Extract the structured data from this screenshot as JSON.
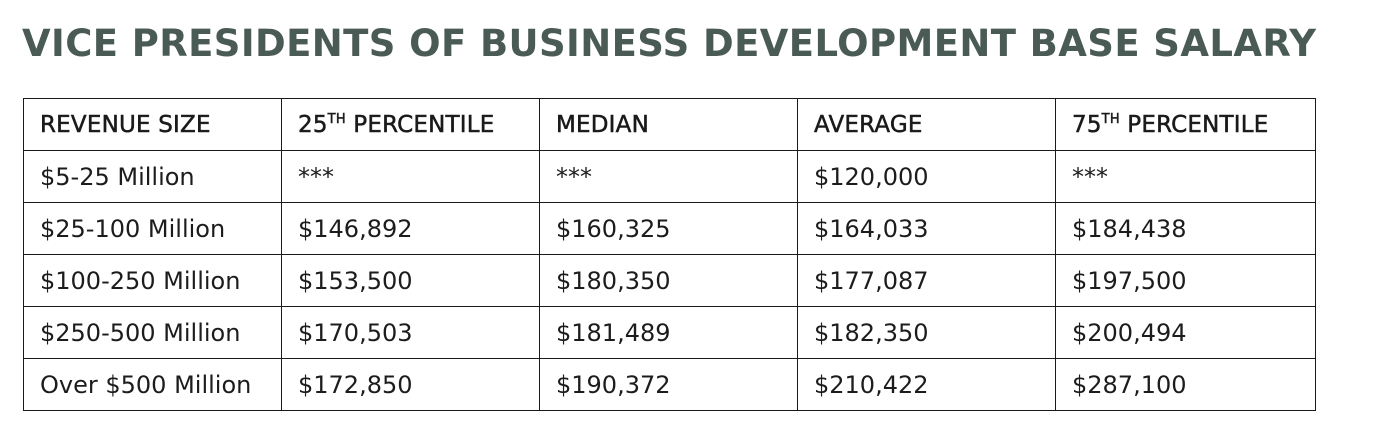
{
  "title": "VICE PRESIDENTS OF BUSINESS DEVELOPMENT BASE SALARY",
  "columns": [
    {
      "text": "REVENUE SIZE",
      "sup": ""
    },
    {
      "text": "25",
      "sup": "TH",
      "rest": " PERCENTILE"
    },
    {
      "text": "MEDIAN",
      "sup": ""
    },
    {
      "text": "AVERAGE",
      "sup": ""
    },
    {
      "text": "75",
      "sup": "TH",
      "rest": " PERCENTILE"
    }
  ],
  "rows": [
    [
      "$5-25 Million",
      "***",
      "***",
      "$120,000",
      "***"
    ],
    [
      "$25-100 Million",
      "$146,892",
      "$160,325",
      "$164,033",
      "$184,438"
    ],
    [
      "$100-250 Million",
      "$153,500",
      "$180,350",
      "$177,087",
      "$197,500"
    ],
    [
      "$250-500 Million",
      "$170,503",
      "$181,489",
      "$182,350",
      "$200,494"
    ],
    [
      "Over $500 Million",
      "$172,850",
      "$190,372",
      "$210,422",
      "$287,100"
    ]
  ],
  "colors": {
    "title": "#4a5a54",
    "border": "#1a1a1a"
  }
}
